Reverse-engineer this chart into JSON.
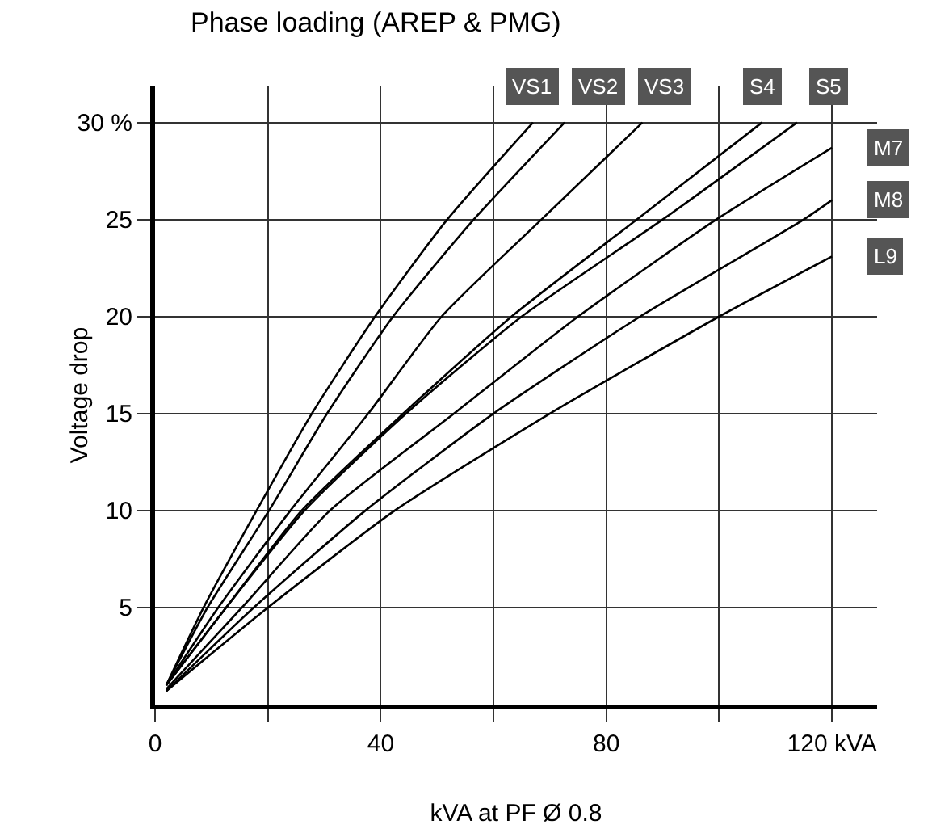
{
  "chart_data": {
    "type": "line",
    "title": "Phase loading (AREP & PMG)",
    "xlabel": "kVA at PF Ø 0.8",
    "ylabel": "Voltage drop",
    "xlim": [
      0,
      128
    ],
    "ylim": [
      0,
      31.9
    ],
    "xticks": [
      0,
      {
        "value": 20,
        "label": null
      },
      40,
      {
        "value": 60,
        "label": null
      },
      80,
      {
        "value": 100,
        "label": null
      },
      {
        "value": 120,
        "label": "120 kVA"
      }
    ],
    "yticks": [
      5,
      10,
      15,
      20,
      25,
      {
        "value": 30,
        "label": "30 %"
      }
    ],
    "grid": true,
    "legend": false,
    "marker": "none",
    "line_style": "solid",
    "series": [
      {
        "name": "VS1",
        "color": "#000000",
        "x": [
          2,
          8.6,
          18,
          27.8,
          39,
          51.8,
          67
        ],
        "values": [
          1,
          5,
          10,
          15,
          20,
          25,
          30
        ]
      },
      {
        "name": "VS2",
        "color": "#000000",
        "x": [
          2,
          9.3,
          20.2,
          30.5,
          42.2,
          56.5,
          72.6
        ],
        "values": [
          1,
          5,
          10,
          15,
          20,
          25,
          30
        ]
      },
      {
        "name": "VS3",
        "color": "#000000",
        "x": [
          2,
          11.2,
          24,
          37.8,
          50.8,
          68.5,
          86.4
        ],
        "values": [
          1,
          5,
          10,
          15,
          20,
          25,
          30
        ]
      },
      {
        "name": "S4",
        "color": "#000000",
        "x": [
          2,
          12.6,
          26,
          44,
          63.2,
          85.4,
          107.6
        ],
        "values": [
          1,
          5,
          10,
          15,
          20,
          25,
          30
        ]
      },
      {
        "name": "S5",
        "color": "#000000",
        "x": [
          2,
          12.6,
          26.5,
          44.5,
          65,
          90,
          113.8
        ],
        "values": [
          1,
          5,
          10,
          15,
          20,
          25,
          30
        ]
      },
      {
        "name": "M7",
        "color": "#000000",
        "x": [
          2,
          15.4,
          31,
          53,
          75,
          99.5,
          120
        ],
        "values": [
          0.8,
          5,
          10,
          15,
          20,
          25,
          28.7
        ]
      },
      {
        "name": "M8",
        "color": "#000000",
        "x": [
          2,
          17.5,
          37.3,
          60,
          86,
          115,
          120
        ],
        "values": [
          0.7,
          5,
          10,
          15,
          20,
          25,
          26
        ]
      },
      {
        "name": "L9",
        "color": "#000000",
        "x": [
          2,
          20,
          42.5,
          70,
          100,
          120
        ],
        "values": [
          0.7,
          5,
          10,
          15,
          20,
          23.1
        ]
      }
    ]
  }
}
